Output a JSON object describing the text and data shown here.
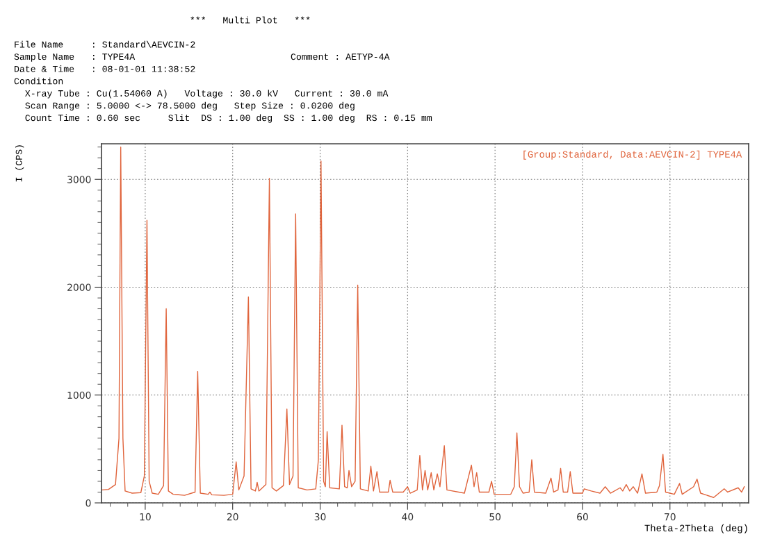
{
  "chart_data": {
    "type": "line",
    "title": "***   Multi Plot   ***",
    "annotations": [
      "File Name     : Standard\\AEVCIN-2",
      "Sample Name   : TYPE4A",
      "Comment : AETYP-4A",
      "Date & Time   : 08-01-01 11:38:52",
      "Condition",
      "  X-ray Tube : Cu(1.54060 A)   Voltage : 30.0 kV   Current : 30.0 mA",
      "  Scan Range : 5.0000 <-> 78.5000 deg   Step Size : 0.0200 deg",
      "  Count Time : 0.60 sec     Slit  DS : 1.00 deg  SS : 1.00 deg  RS : 0.15 mm"
    ],
    "xlabel": "Theta-2Theta (deg)",
    "ylabel": "I (CPS)",
    "xlim": [
      5,
      79
    ],
    "ylim": [
      0,
      3330
    ],
    "xticks": [
      {
        "value": 6,
        "label": null
      },
      {
        "value": 8,
        "label": null
      },
      10,
      {
        "value": 12,
        "label": null
      },
      {
        "value": 14,
        "label": null
      },
      {
        "value": 16,
        "label": null
      },
      {
        "value": 18,
        "label": null
      },
      20,
      {
        "value": 22,
        "label": null
      },
      {
        "value": 24,
        "label": null
      },
      {
        "value": 26,
        "label": null
      },
      {
        "value": 28,
        "label": null
      },
      30,
      {
        "value": 32,
        "label": null
      },
      {
        "value": 34,
        "label": null
      },
      {
        "value": 36,
        "label": null
      },
      {
        "value": 38,
        "label": null
      },
      40,
      {
        "value": 42,
        "label": null
      },
      {
        "value": 44,
        "label": null
      },
      {
        "value": 46,
        "label": null
      },
      {
        "value": 48,
        "label": null
      },
      50,
      {
        "value": 52,
        "label": null
      },
      {
        "value": 54,
        "label": null
      },
      {
        "value": 56,
        "label": null
      },
      {
        "value": 58,
        "label": null
      },
      60,
      {
        "value": 62,
        "label": null
      },
      {
        "value": 64,
        "label": null
      },
      {
        "value": 66,
        "label": null
      },
      {
        "value": 68,
        "label": null
      },
      70,
      {
        "value": 72,
        "label": null
      },
      {
        "value": 74,
        "label": null
      },
      {
        "value": 76,
        "label": null
      },
      {
        "value": 78,
        "label": null
      }
    ],
    "yticks": [
      0,
      {
        "value": 100,
        "label": null
      },
      {
        "value": 200,
        "label": null
      },
      {
        "value": 300,
        "label": null
      },
      {
        "value": 400,
        "label": null
      },
      {
        "value": 500,
        "label": null
      },
      {
        "value": 600,
        "label": null
      },
      {
        "value": 700,
        "label": null
      },
      {
        "value": 800,
        "label": null
      },
      {
        "value": 900,
        "label": null
      },
      1000,
      {
        "value": 1100,
        "label": null
      },
      {
        "value": 1200,
        "label": null
      },
      {
        "value": 1300,
        "label": null
      },
      {
        "value": 1400,
        "label": null
      },
      {
        "value": 1500,
        "label": null
      },
      {
        "value": 1600,
        "label": null
      },
      {
        "value": 1700,
        "label": null
      },
      {
        "value": 1800,
        "label": null
      },
      {
        "value": 1900,
        "label": null
      },
      2000,
      {
        "value": 2100,
        "label": null
      },
      {
        "value": 2200,
        "label": null
      },
      {
        "value": 2300,
        "label": null
      },
      {
        "value": 2400,
        "label": null
      },
      {
        "value": 2500,
        "label": null
      },
      {
        "value": 2600,
        "label": null
      },
      {
        "value": 2700,
        "label": null
      },
      {
        "value": 2800,
        "label": null
      },
      {
        "value": 2900,
        "label": null
      },
      3000,
      {
        "value": 3100,
        "label": null
      },
      {
        "value": 3200,
        "label": null
      },
      {
        "value": 3300,
        "label": null
      }
    ],
    "grid": true,
    "legend": "top right",
    "marker": "none",
    "line_style": "solid",
    "series": [
      {
        "name": "[Group:Standard, Data:AEVCIN-2] TYPE4A",
        "color": "#e0643c",
        "x": [
          5.0,
          5.8,
          6.6,
          7.0,
          7.2,
          7.45,
          7.7,
          8.5,
          9.5,
          9.9,
          10.2,
          10.45,
          10.8,
          11.5,
          12.1,
          12.4,
          12.65,
          13.2,
          14.5,
          15.7,
          16.0,
          16.3,
          17.2,
          17.4,
          17.6,
          19.0,
          20.0,
          20.4,
          20.7,
          21.3,
          21.8,
          22.1,
          22.6,
          22.8,
          23.0,
          23.8,
          24.2,
          24.5,
          25.0,
          25.8,
          26.2,
          26.5,
          26.9,
          27.2,
          27.5,
          28.5,
          29.5,
          29.8,
          30.1,
          30.4,
          30.6,
          30.8,
          31.1,
          32.2,
          32.5,
          32.8,
          33.1,
          33.3,
          33.6,
          34.0,
          34.3,
          34.6,
          35.5,
          35.8,
          36.1,
          36.5,
          36.8,
          37.8,
          38.0,
          38.3,
          39.5,
          40.0,
          40.3,
          41.1,
          41.4,
          41.7,
          42.0,
          42.3,
          42.7,
          43.0,
          43.4,
          43.7,
          44.2,
          44.5,
          46.5,
          47.3,
          47.6,
          47.9,
          48.2,
          49.3,
          49.6,
          49.9,
          51.8,
          52.2,
          52.5,
          52.8,
          53.2,
          53.9,
          54.2,
          54.5,
          55.8,
          56.4,
          56.7,
          57.2,
          57.5,
          57.8,
          58.3,
          58.6,
          58.9,
          60.0,
          60.2,
          61.0,
          62.0,
          62.6,
          63.2,
          64.3,
          64.6,
          65.0,
          65.4,
          65.8,
          66.3,
          66.8,
          67.2,
          68.5,
          68.8,
          69.2,
          69.5,
          70.5,
          71.1,
          71.4,
          72.7,
          73.1,
          73.5,
          75.0,
          76.2,
          76.6,
          77.8,
          78.2,
          78.5
        ],
        "values": [
          120,
          125,
          170,
          600,
          3300,
          600,
          110,
          90,
          95,
          250,
          2620,
          200,
          90,
          80,
          160,
          1800,
          110,
          80,
          70,
          100,
          1220,
          90,
          80,
          100,
          75,
          70,
          80,
          380,
          120,
          250,
          1910,
          130,
          110,
          190,
          110,
          170,
          3010,
          140,
          110,
          160,
          870,
          170,
          250,
          2680,
          140,
          120,
          130,
          400,
          3170,
          200,
          150,
          660,
          140,
          130,
          720,
          150,
          140,
          300,
          150,
          200,
          2020,
          130,
          110,
          340,
          110,
          290,
          100,
          100,
          210,
          100,
          100,
          150,
          90,
          120,
          440,
          120,
          300,
          120,
          280,
          120,
          270,
          150,
          530,
          120,
          90,
          350,
          150,
          280,
          100,
          100,
          200,
          80,
          80,
          150,
          650,
          150,
          90,
          100,
          400,
          100,
          90,
          230,
          100,
          120,
          320,
          100,
          100,
          290,
          90,
          90,
          130,
          110,
          90,
          150,
          90,
          140,
          110,
          170,
          110,
          150,
          90,
          270,
          90,
          100,
          160,
          450,
          100,
          80,
          180,
          80,
          150,
          220,
          90,
          50,
          130,
          100,
          140,
          100,
          150
        ]
      }
    ]
  }
}
